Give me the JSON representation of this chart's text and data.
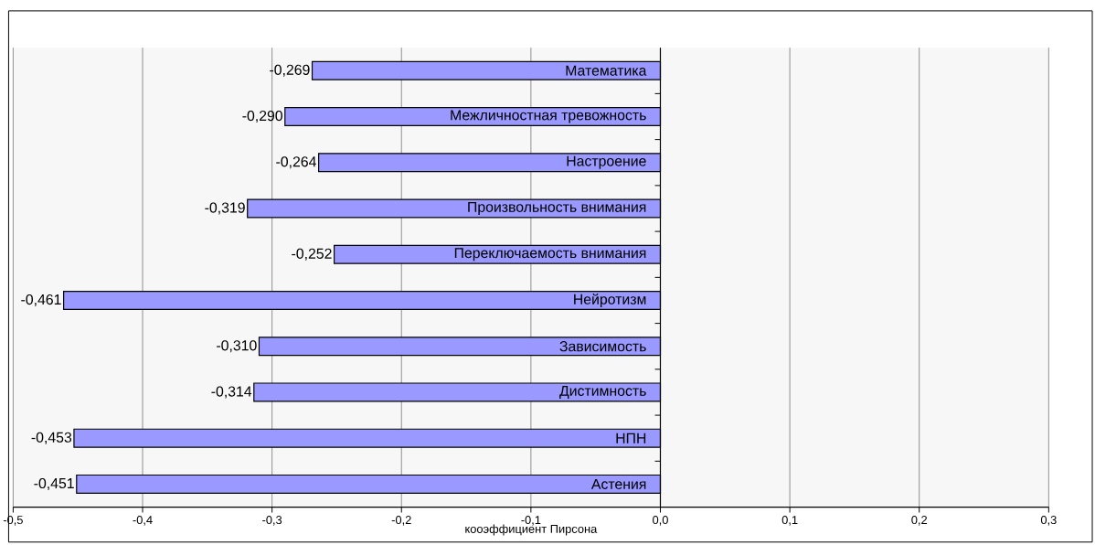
{
  "chart_data": {
    "type": "bar",
    "orientation": "horizontal",
    "xlabel": "кооэффициент Пирсона",
    "categories": [
      "Математика",
      "Межличностная тревожность",
      "Настроение",
      "Произвольность внимания",
      "Переключаемость внимания",
      "Нейротизм",
      "Зависимость",
      "Дистимность",
      "НПН",
      "Астения"
    ],
    "values": [
      -0.269,
      -0.29,
      -0.264,
      -0.319,
      -0.252,
      -0.461,
      -0.31,
      -0.314,
      -0.453,
      -0.451
    ],
    "value_labels": [
      "-0,269",
      "-0,290",
      "-0,264",
      "-0,319",
      "-0,252",
      "-0,461",
      "-0,310",
      "-0,314",
      "-0,453",
      "-0,451"
    ],
    "color": "#9999ff",
    "xlim": [
      -0.5,
      0.3
    ],
    "xticks": [
      {
        "value": -0.5,
        "label": "-0,5"
      },
      {
        "value": -0.4,
        "label": "-0,4"
      },
      {
        "value": -0.3,
        "label": "-0,3"
      },
      {
        "value": -0.2,
        "label": "-0,2"
      },
      {
        "value": -0.1,
        "label": "-0,1"
      },
      {
        "value": 0,
        "label": "0,0"
      },
      {
        "value": 0.1,
        "label": "0,1"
      },
      {
        "value": 0.2,
        "label": "0,2"
      },
      {
        "value": 0.3,
        "label": "0,3"
      }
    ],
    "grid": "x"
  }
}
